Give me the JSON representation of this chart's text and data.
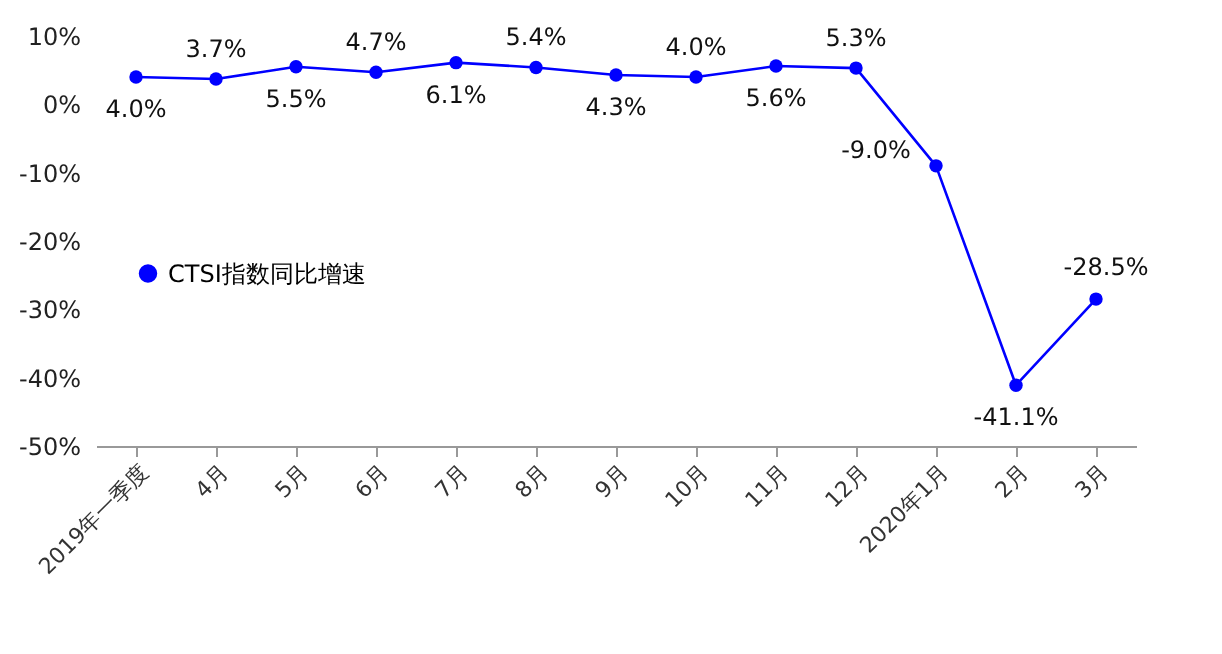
{
  "chart_data": {
    "type": "line",
    "categories": [
      "2019年一季度",
      "4月",
      "5月",
      "6月",
      "7月",
      "8月",
      "9月",
      "10月",
      "11月",
      "12月",
      "2020年1月",
      "2月",
      "3月"
    ],
    "series": [
      {
        "name": "CTSI指数同比增速",
        "color": "#0000ff",
        "values": [
          4.0,
          3.7,
          5.5,
          4.7,
          6.1,
          5.4,
          4.3,
          4.0,
          5.6,
          5.3,
          -9.0,
          -41.1,
          -28.5
        ],
        "value_labels": [
          "4.0%",
          "3.7%",
          "5.5%",
          "4.7%",
          "6.1%",
          "5.4%",
          "4.3%",
          "4.0%",
          "5.6%",
          "5.3%",
          "-9.0%",
          "-41.1%",
          "-28.5%"
        ]
      }
    ],
    "ylim": [
      -50,
      10
    ],
    "yticks": [
      {
        "value": -50,
        "label": "-50%"
      },
      {
        "value": -40,
        "label": "-40%"
      },
      {
        "value": -30,
        "label": "-30%"
      },
      {
        "value": -20,
        "label": "-20%"
      },
      {
        "value": -10,
        "label": "-10%"
      },
      {
        "value": 0,
        "label": "0%"
      },
      {
        "value": 10,
        "label": "10%"
      }
    ],
    "marker": "circle",
    "line_style": "solid",
    "grid": false,
    "legend": "left"
  }
}
